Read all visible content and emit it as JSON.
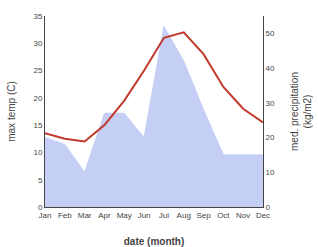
{
  "chart_data": {
    "type": "line",
    "categories": [
      "Jan",
      "Feb",
      "Mar",
      "Apr",
      "May",
      "Jun",
      "Jul",
      "Aug",
      "Sep",
      "Oct",
      "Nov",
      "Dec"
    ],
    "xlabel": "date (month)",
    "ylabel": "max temp (C)",
    "y2label": "med. precipitation\n(kg/m2)",
    "ylim": [
      0,
      35
    ],
    "yticks": [
      0,
      5,
      10,
      15,
      20,
      25,
      30,
      35
    ],
    "y2lim": [
      0,
      55
    ],
    "y2ticks": [
      0,
      10,
      20,
      30,
      40,
      50
    ],
    "grid": false,
    "series": [
      {
        "type": "area",
        "axis": "y2",
        "color": "#c5cff5",
        "values": [
          20,
          18,
          10,
          27,
          27,
          20,
          52,
          42,
          28,
          15,
          15,
          15
        ]
      },
      {
        "type": "line",
        "color": "#c0392b",
        "values": [
          13.5,
          12.5,
          12.0,
          15.0,
          19.5,
          25.0,
          31.0,
          32.0,
          28.0,
          22.0,
          18.0,
          15.5
        ]
      }
    ]
  }
}
